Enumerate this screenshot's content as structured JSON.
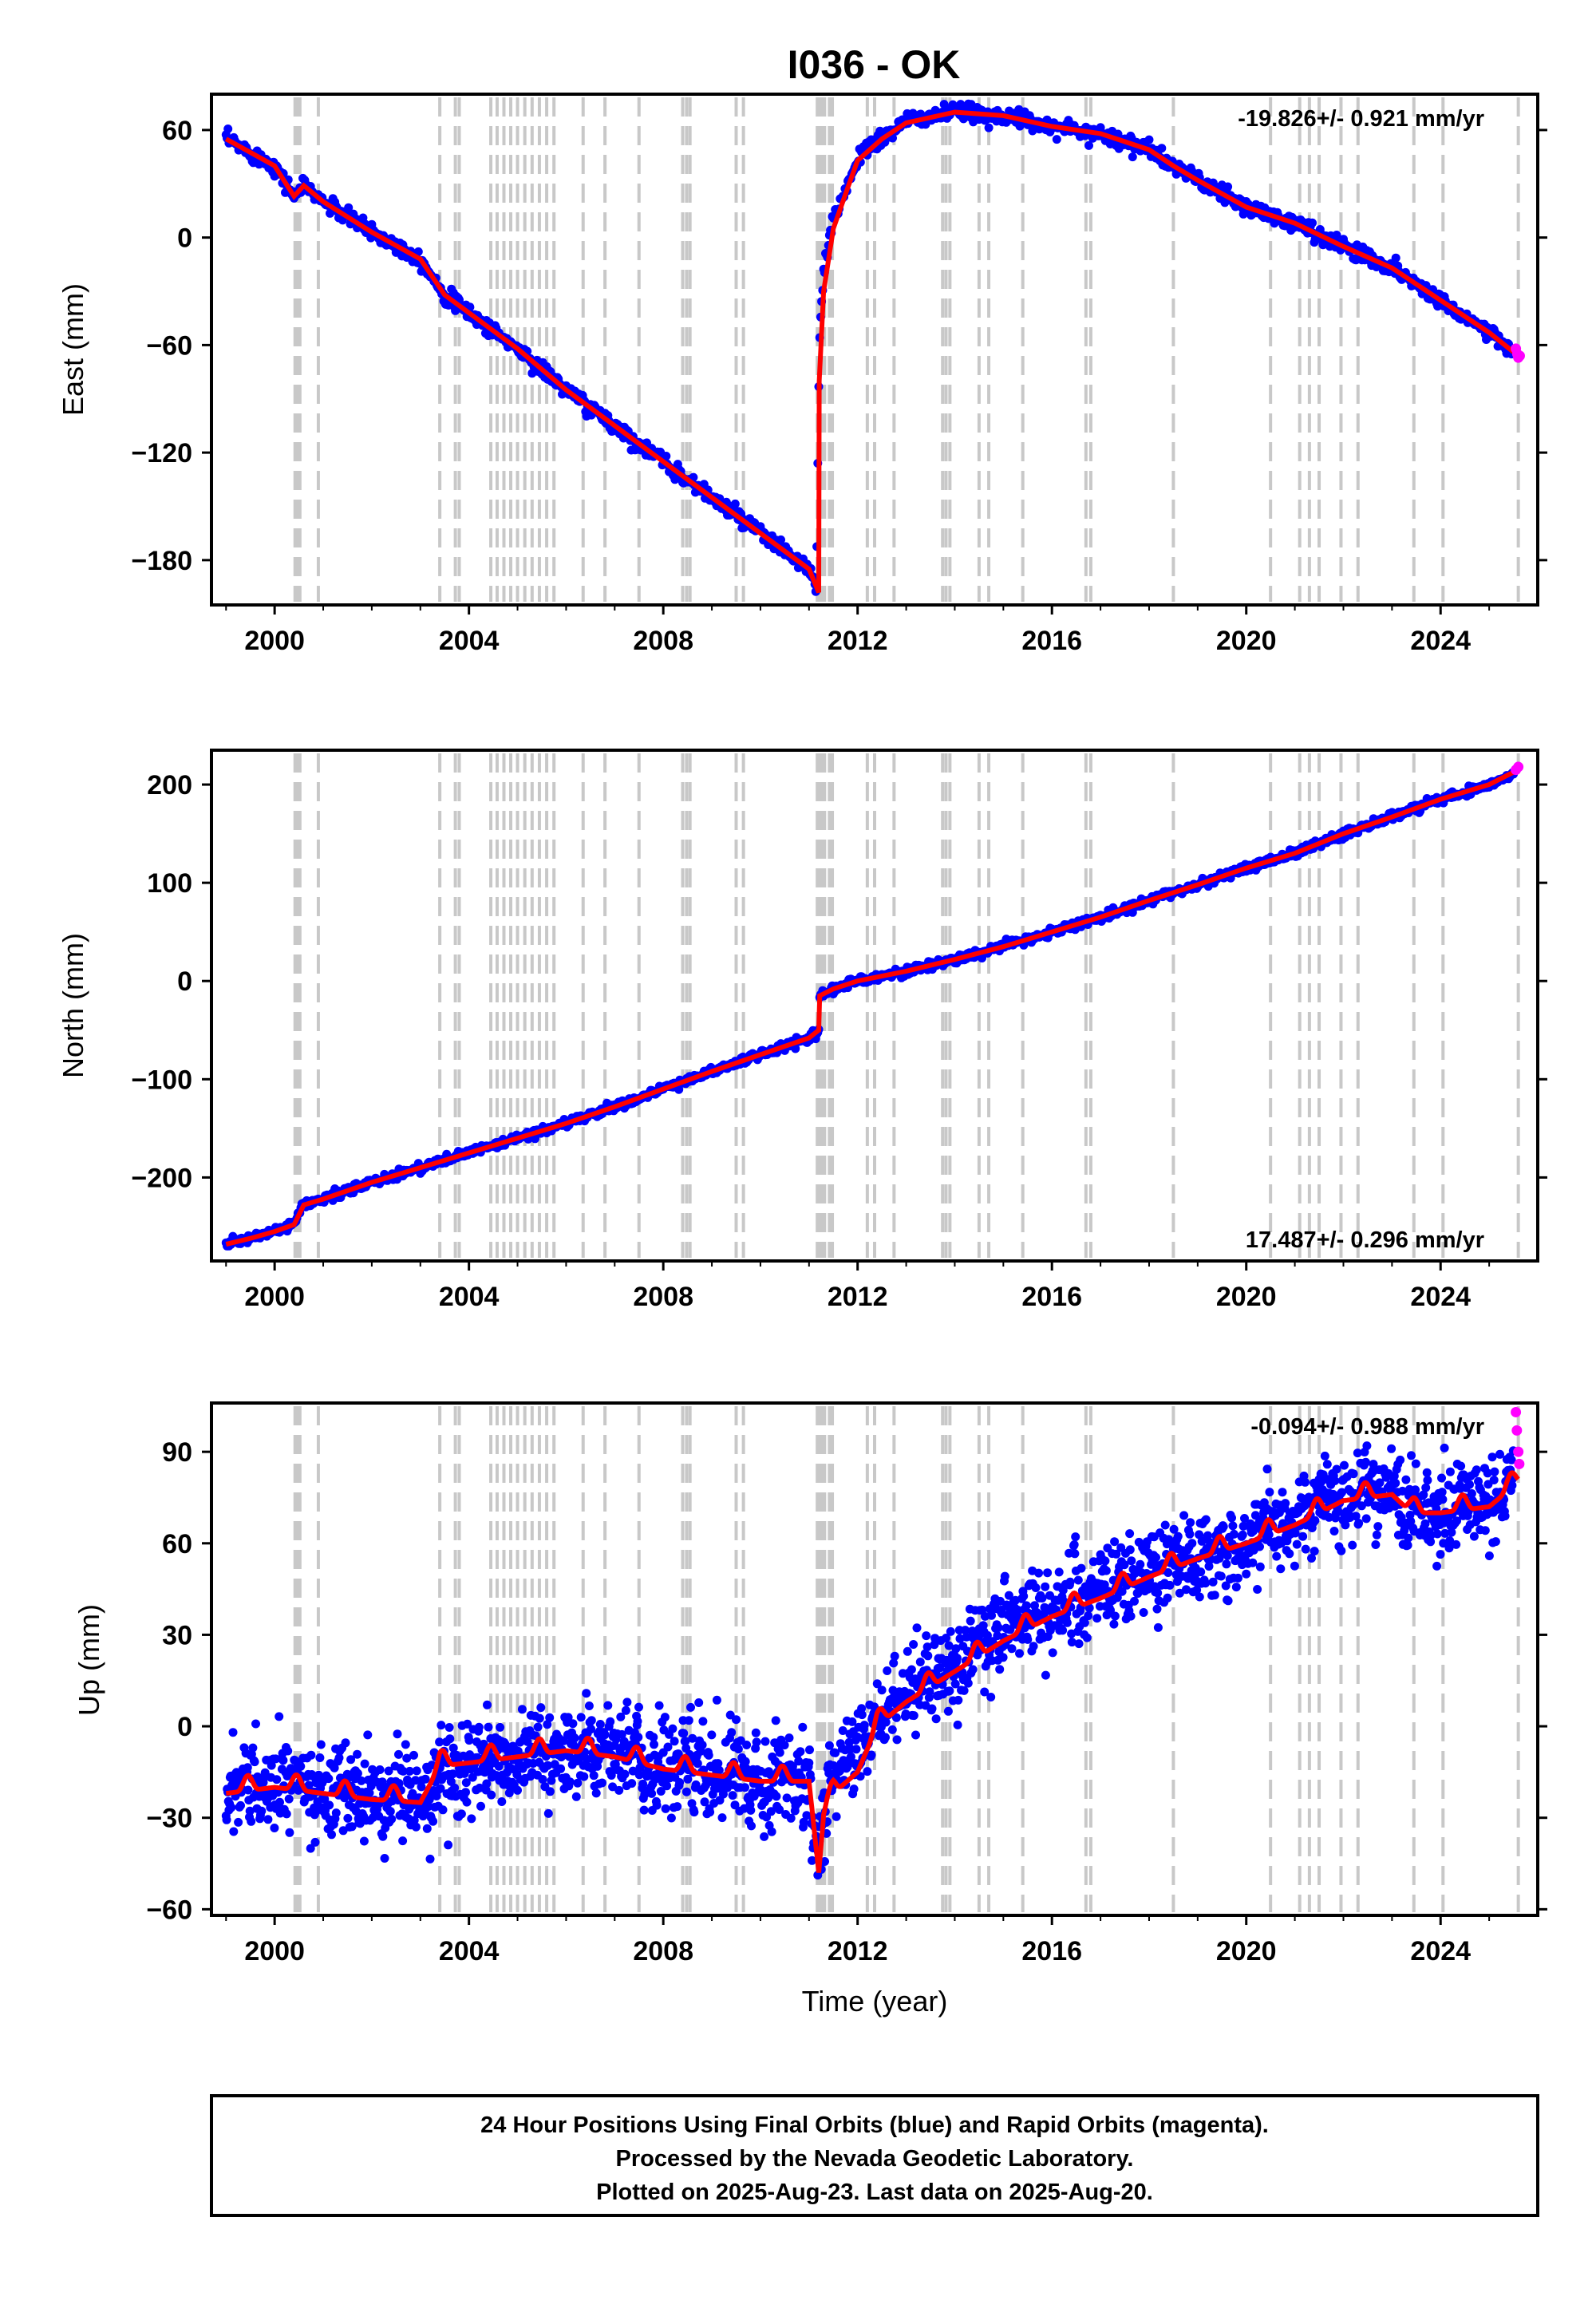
{
  "colors": {
    "final": "#0000ff",
    "rapid": "#ff00ff",
    "model": "#ff0000",
    "steps": "#c8c8c8",
    "frame": "#000000"
  },
  "chart_data": [
    {
      "type": "scatter",
      "title": "I036 - OK",
      "ylabel": "East (mm)",
      "xlabel": "",
      "xlim": [
        1998.7,
        2026.0
      ],
      "ylim": [
        -205,
        80
      ],
      "xticks": [
        "2000",
        "2004",
        "2008",
        "2012",
        "2016",
        "2020",
        "2024"
      ],
      "yticks": [
        "60",
        "0",
        "−60",
        "−120",
        "−180"
      ],
      "ytick_values": [
        60,
        0,
        -60,
        -120,
        -180
      ],
      "rate_label": "-19.826+/- 0.921 mm/yr",
      "rate_position": "top-right",
      "series": [
        {
          "name": "Final Orbits (blue)",
          "x": [
            1999.0,
            2000.0,
            2000.4,
            2000.6,
            2001.0,
            2002.0,
            2003.0,
            2003.5,
            2004.0,
            2005.0,
            2006.0,
            2007.0,
            2008.0,
            2009.0,
            2010.0,
            2011.0,
            2011.15,
            2011.21,
            2011.3,
            2011.5,
            2011.8,
            2012.0,
            2012.5,
            2013.0,
            2014.0,
            2015.0,
            2016.0,
            2017.0,
            2018.0,
            2018.5,
            2019.0,
            2020.0,
            2021.0,
            2022.0,
            2023.0,
            2024.0,
            2025.0,
            2025.5
          ],
          "y": [
            55,
            40,
            23,
            29,
            20,
            3,
            -12,
            -32,
            -42,
            -62,
            -85,
            -105,
            -125,
            -145,
            -165,
            -185,
            -196,
            -60,
            -20,
            10,
            30,
            45,
            55,
            65,
            70,
            68,
            62,
            58,
            49,
            40,
            32,
            17,
            8,
            -5,
            -17,
            -35,
            -53,
            -64
          ]
        },
        {
          "name": "Rapid Orbits (magenta)",
          "x": [
            2025.55,
            2025.58,
            2025.6,
            2025.63
          ],
          "y": [
            -62,
            -65,
            -67,
            -66
          ]
        }
      ],
      "model": {
        "x": [
          1999.0,
          2000.0,
          2000.4,
          2000.6,
          2001.0,
          2002.0,
          2003.0,
          2003.5,
          2004.0,
          2005.0,
          2006.0,
          2007.0,
          2008.0,
          2009.0,
          2010.0,
          2011.0,
          2011.2,
          2011.21,
          2011.3,
          2011.5,
          2011.8,
          2012.0,
          2012.5,
          2013.0,
          2014.0,
          2015.0,
          2016.0,
          2017.0,
          2018.0,
          2018.5,
          2019.0,
          2020.0,
          2021.0,
          2022.0,
          2023.0,
          2024.0,
          2025.0,
          2025.6
        ],
        "y": [
          55,
          40,
          23,
          29,
          20,
          3,
          -12,
          -32,
          -42,
          -62,
          -85,
          -105,
          -125,
          -145,
          -165,
          -185,
          -198,
          -80,
          -30,
          5,
          28,
          43,
          55,
          64,
          70,
          68,
          62,
          58,
          49,
          40,
          32,
          17,
          8,
          -5,
          -17,
          -35,
          -53,
          -66
        ]
      }
    },
    {
      "type": "scatter",
      "title": "",
      "ylabel": "North (mm)",
      "xlabel": "",
      "xlim": [
        1998.7,
        2026.0
      ],
      "ylim": [
        -285,
        235
      ],
      "xticks": [
        "2000",
        "2004",
        "2008",
        "2012",
        "2016",
        "2020",
        "2024"
      ],
      "yticks": [
        "200",
        "100",
        "0",
        "−100",
        "−200"
      ],
      "ytick_values": [
        200,
        100,
        0,
        -100,
        -200
      ],
      "rate_label": "17.487+/- 0.296 mm/yr",
      "rate_position": "bottom-right",
      "series": [
        {
          "name": "Final Orbits (blue)",
          "x": [
            1999.0,
            1999.5,
            2000.0,
            2000.4,
            2000.6,
            2001.0,
            2002.0,
            2003.0,
            2004.0,
            2005.0,
            2006.0,
            2007.0,
            2008.0,
            2009.0,
            2010.0,
            2011.0,
            2011.2,
            2011.22,
            2011.5,
            2012.0,
            2013.0,
            2014.0,
            2015.0,
            2016.0,
            2017.0,
            2018.0,
            2019.0,
            2020.0,
            2021.0,
            2022.0,
            2023.0,
            2024.0,
            2025.0,
            2025.5
          ],
          "y": [
            -268,
            -262,
            -255,
            -248,
            -228,
            -222,
            -205,
            -190,
            -175,
            -160,
            -145,
            -128,
            -110,
            -92,
            -75,
            -58,
            -50,
            -15,
            -8,
            0,
            10,
            22,
            35,
            50,
            65,
            82,
            98,
            115,
            130,
            150,
            167,
            185,
            200,
            212
          ]
        },
        {
          "name": "Rapid Orbits (magenta)",
          "x": [
            2025.55,
            2025.6
          ],
          "y": [
            215,
            218
          ]
        }
      ],
      "model": {
        "x": [
          1999.0,
          1999.5,
          2000.0,
          2000.4,
          2000.6,
          2001.0,
          2002.0,
          2003.0,
          2004.0,
          2005.0,
          2006.0,
          2007.0,
          2008.0,
          2009.0,
          2010.0,
          2011.0,
          2011.2,
          2011.22,
          2011.5,
          2012.0,
          2013.0,
          2014.0,
          2015.0,
          2016.0,
          2017.0,
          2018.0,
          2019.0,
          2020.0,
          2021.0,
          2022.0,
          2023.0,
          2024.0,
          2025.0,
          2025.6
        ],
        "y": [
          -268,
          -262,
          -255,
          -248,
          -228,
          -222,
          -205,
          -190,
          -175,
          -160,
          -145,
          -128,
          -110,
          -92,
          -75,
          -58,
          -50,
          -15,
          -8,
          0,
          10,
          22,
          35,
          50,
          65,
          82,
          98,
          115,
          130,
          150,
          167,
          185,
          200,
          215
        ]
      }
    },
    {
      "type": "scatter",
      "title": "",
      "ylabel": "Up (mm)",
      "xlabel": "Time (year)",
      "xlim": [
        1998.7,
        2026.0
      ],
      "ylim": [
        -62,
        106
      ],
      "xticks": [
        "2000",
        "2004",
        "2008",
        "2012",
        "2016",
        "2020",
        "2024"
      ],
      "yticks": [
        "90",
        "60",
        "30",
        "0",
        "−30",
        "−60"
      ],
      "ytick_values": [
        90,
        60,
        30,
        0,
        -30,
        -60
      ],
      "rate_label": "-0.094+/- 0.988 mm/yr",
      "rate_position": "top-right",
      "series": [
        {
          "name": "Final Orbits (blue)",
          "x": [
            1999.0,
            2000.0,
            2001.0,
            2002.0,
            2003.0,
            2004.0,
            2005.0,
            2006.0,
            2007.0,
            2008.0,
            2009.0,
            2010.0,
            2011.0,
            2011.2,
            2011.4,
            2012.0,
            2013.0,
            2014.0,
            2015.0,
            2016.0,
            2017.0,
            2018.0,
            2019.0,
            2020.0,
            2021.0,
            2022.0,
            2023.0,
            2023.3,
            2024.0,
            2025.0,
            2025.5
          ],
          "y": [
            -20,
            -20,
            -22,
            -24,
            -25,
            -14,
            -12,
            -8,
            -10,
            -14,
            -16,
            -18,
            -18,
            -48,
            -22,
            -8,
            10,
            20,
            32,
            38,
            43,
            50,
            55,
            60,
            67,
            75,
            78,
            68,
            70,
            72,
            80
          ]
        },
        {
          "name": "Rapid Orbits (magenta)",
          "x": [
            2025.55,
            2025.57,
            2025.6,
            2025.62
          ],
          "y": [
            103,
            97,
            90,
            86
          ]
        }
      ],
      "model": {
        "seasonal_amplitude_mm": 5,
        "anchors": {
          "x": [
            1999.0,
            2000.0,
            2001.0,
            2002.0,
            2003.0,
            2003.4,
            2004.0,
            2005.0,
            2006.0,
            2007.0,
            2008.0,
            2009.0,
            2010.0,
            2011.0,
            2011.2,
            2011.3,
            2011.5,
            2012.0,
            2012.4,
            2013.0,
            2014.0,
            2015.0,
            2016.0,
            2017.0,
            2018.0,
            2019.0,
            2020.0,
            2021.0,
            2022.0,
            2023.0,
            2023.4,
            2024.0,
            2025.0,
            2025.6
          ],
          "y": [
            -22,
            -20,
            -22,
            -24,
            -25,
            -13,
            -12,
            -10,
            -8,
            -10,
            -14,
            -16,
            -18,
            -18,
            -48,
            -30,
            -22,
            -15,
            0,
            8,
            18,
            28,
            36,
            42,
            49,
            55,
            60,
            66,
            74,
            76,
            70,
            70,
            72,
            80
          ]
        }
      }
    }
  ],
  "step_epochs": [
    2000.42,
    2000.46,
    2000.52,
    2000.9,
    2003.4,
    2003.72,
    2003.8,
    2004.45,
    2004.58,
    2004.72,
    2004.86,
    2005.0,
    2005.15,
    2005.3,
    2005.45,
    2005.6,
    2005.75,
    2006.35,
    2006.8,
    2007.5,
    2008.4,
    2008.48,
    2008.55,
    2009.5,
    2009.65,
    2011.17,
    2011.22,
    2011.27,
    2011.32,
    2011.42,
    2011.48,
    2012.2,
    2012.35,
    2012.75,
    2013.75,
    2013.82,
    2013.9,
    2014.5,
    2014.7,
    2015.4,
    2016.7,
    2016.8,
    2018.5,
    2020.5,
    2021.1,
    2021.3,
    2021.5,
    2021.95,
    2022.3,
    2023.45,
    2024.05,
    2025.6
  ],
  "caption": {
    "line1": "24 Hour Positions Using Final Orbits (blue) and Rapid Orbits (magenta).",
    "line2": "Processed by the Nevada Geodetic Laboratory.",
    "line3": "Plotted on 2025-Aug-23. Last data on 2025-Aug-20."
  }
}
